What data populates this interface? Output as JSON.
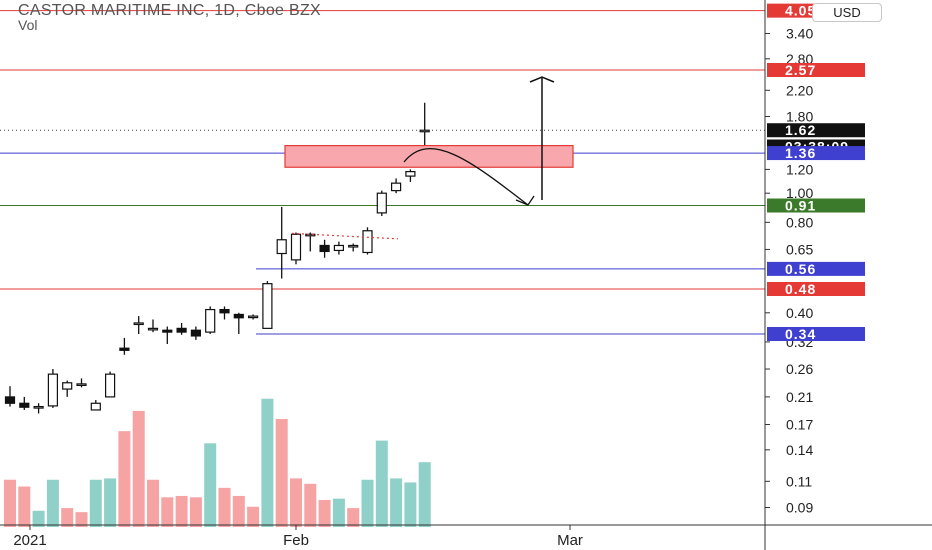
{
  "header": {
    "title": "CASTOR MARITIME INC, 1D, Cboe BZX",
    "subtitle": "Vol",
    "currency": "USD"
  },
  "chart_data": {
    "type": "candlestick",
    "price_scale": "log",
    "y_ticks": [
      "3.40",
      "2.80",
      "2.20",
      "1.80",
      "1.20",
      "1.00",
      "0.80",
      "0.65",
      "0.40",
      "0.32",
      "0.26",
      "0.21",
      "0.17",
      "0.14",
      "0.11",
      "0.09"
    ],
    "x_ticks": [
      "2021",
      "Feb",
      "Mar"
    ],
    "colors": {
      "up_volume": "#8fd0c8",
      "down_volume": "#f5a3a3",
      "red_line": "#e53935",
      "blue_line": "#3f3fd0",
      "green_line": "#3a7a2a",
      "zone_fill": "#f8a8ac",
      "zone_border": "#e53935"
    },
    "candles": [
      {
        "o": 0.21,
        "h": 0.228,
        "l": 0.195,
        "c": 0.2
      },
      {
        "o": 0.2,
        "h": 0.21,
        "l": 0.19,
        "c": 0.194
      },
      {
        "o": 0.195,
        "h": 0.2,
        "l": 0.185,
        "c": 0.195
      },
      {
        "o": 0.196,
        "h": 0.26,
        "l": 0.193,
        "c": 0.25
      },
      {
        "o": 0.223,
        "h": 0.238,
        "l": 0.21,
        "c": 0.234
      },
      {
        "o": 0.232,
        "h": 0.242,
        "l": 0.226,
        "c": 0.232
      },
      {
        "o": 0.19,
        "h": 0.205,
        "l": 0.19,
        "c": 0.2
      },
      {
        "o": 0.21,
        "h": 0.255,
        "l": 0.21,
        "c": 0.25
      },
      {
        "o": 0.305,
        "h": 0.33,
        "l": 0.29,
        "c": 0.3
      },
      {
        "o": 0.37,
        "h": 0.39,
        "l": 0.34,
        "c": 0.37
      },
      {
        "o": 0.355,
        "h": 0.38,
        "l": 0.345,
        "c": 0.355
      },
      {
        "o": 0.35,
        "h": 0.36,
        "l": 0.315,
        "c": 0.345
      },
      {
        "o": 0.355,
        "h": 0.37,
        "l": 0.338,
        "c": 0.345
      },
      {
        "o": 0.35,
        "h": 0.36,
        "l": 0.325,
        "c": 0.335
      },
      {
        "o": 0.345,
        "h": 0.42,
        "l": 0.34,
        "c": 0.41
      },
      {
        "o": 0.41,
        "h": 0.42,
        "l": 0.38,
        "c": 0.4
      },
      {
        "o": 0.395,
        "h": 0.4,
        "l": 0.34,
        "c": 0.385
      },
      {
        "o": 0.39,
        "h": 0.395,
        "l": 0.38,
        "c": 0.39
      },
      {
        "o": 0.355,
        "h": 0.51,
        "l": 0.355,
        "c": 0.5
      },
      {
        "o": 0.63,
        "h": 0.9,
        "l": 0.52,
        "c": 0.7
      },
      {
        "o": 0.6,
        "h": 0.74,
        "l": 0.58,
        "c": 0.73
      },
      {
        "o": 0.73,
        "h": 0.74,
        "l": 0.64,
        "c": 0.73
      },
      {
        "o": 0.67,
        "h": 0.7,
        "l": 0.61,
        "c": 0.64
      },
      {
        "o": 0.645,
        "h": 0.69,
        "l": 0.625,
        "c": 0.67
      },
      {
        "o": 0.67,
        "h": 0.68,
        "l": 0.64,
        "c": 0.67
      },
      {
        "o": 0.635,
        "h": 0.77,
        "l": 0.625,
        "c": 0.75
      },
      {
        "o": 0.86,
        "h": 1.02,
        "l": 0.84,
        "c": 1.0
      },
      {
        "o": 1.02,
        "h": 1.12,
        "l": 1.0,
        "c": 1.08
      },
      {
        "o": 1.14,
        "h": 1.2,
        "l": 1.09,
        "c": 1.18
      },
      {
        "o": 1.62,
        "h": 2.0,
        "l": 1.42,
        "c": 1.62
      }
    ],
    "volume": [
      {
        "v": 0.35,
        "up": false
      },
      {
        "v": 0.3,
        "up": false
      },
      {
        "v": 0.12,
        "up": true
      },
      {
        "v": 0.35,
        "up": true
      },
      {
        "v": 0.14,
        "up": false
      },
      {
        "v": 0.11,
        "up": false
      },
      {
        "v": 0.35,
        "up": true
      },
      {
        "v": 0.36,
        "up": true
      },
      {
        "v": 0.71,
        "up": false
      },
      {
        "v": 0.86,
        "up": false
      },
      {
        "v": 0.35,
        "up": false
      },
      {
        "v": 0.22,
        "up": false
      },
      {
        "v": 0.23,
        "up": false
      },
      {
        "v": 0.22,
        "up": false
      },
      {
        "v": 0.62,
        "up": true
      },
      {
        "v": 0.29,
        "up": false
      },
      {
        "v": 0.23,
        "up": false
      },
      {
        "v": 0.15,
        "up": false
      },
      {
        "v": 0.95,
        "up": true
      },
      {
        "v": 0.8,
        "up": false
      },
      {
        "v": 0.36,
        "up": false
      },
      {
        "v": 0.32,
        "up": false
      },
      {
        "v": 0.2,
        "up": false
      },
      {
        "v": 0.21,
        "up": true
      },
      {
        "v": 0.14,
        "up": false
      },
      {
        "v": 0.35,
        "up": true
      },
      {
        "v": 0.64,
        "up": true
      },
      {
        "v": 0.36,
        "up": true
      },
      {
        "v": 0.33,
        "up": true
      },
      {
        "v": 0.48,
        "up": true
      }
    ],
    "horizontal_lines": [
      {
        "price": 4.05,
        "color": "#e53935"
      },
      {
        "price": 2.57,
        "color": "#e53935"
      },
      {
        "price": 1.36,
        "color": "#3f3fd0"
      },
      {
        "price": 0.91,
        "color": "#3a7a2a"
      },
      {
        "price": 0.48,
        "color": "#e53935"
      }
    ],
    "segment_lines": [
      {
        "price": 0.56,
        "color": "#3f3fd0"
      },
      {
        "price": 0.34,
        "color": "#3f3fd0"
      }
    ],
    "current_price": 1.62,
    "zone": {
      "price_top": 1.44,
      "price_bottom": 1.22
    },
    "price_labels": [
      {
        "text": "4.05",
        "price": 4.05,
        "color": "#e53935"
      },
      {
        "text": "2.57",
        "price": 2.57,
        "color": "#e53935"
      },
      {
        "text": "1.62",
        "price": 1.62,
        "color": "#111111"
      },
      {
        "text": "03:38:09",
        "price": 1.43,
        "color": "#111111"
      },
      {
        "text": "1.36",
        "price": 1.36,
        "color": "#3f3fd0"
      },
      {
        "text": "0.91",
        "price": 0.91,
        "color": "#3a7a2a"
      },
      {
        "text": "0.56",
        "price": 0.56,
        "color": "#3f3fd0"
      },
      {
        "text": "0.48",
        "price": 0.48,
        "color": "#e53935"
      },
      {
        "text": "0.34",
        "price": 0.34,
        "color": "#3f3fd0"
      }
    ]
  }
}
